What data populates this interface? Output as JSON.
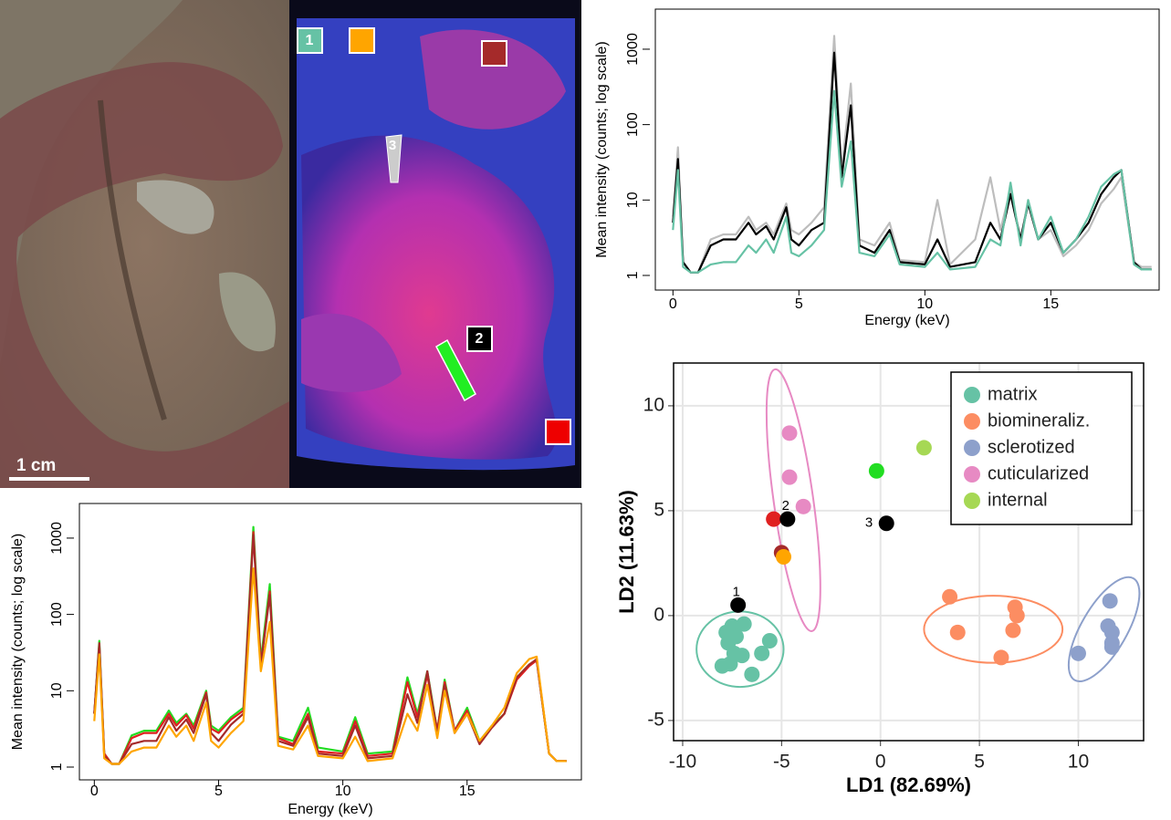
{
  "images": {
    "scale_bar": "1 cm",
    "region_labels": [
      "1",
      "2",
      "3"
    ]
  },
  "chart_data": [
    {
      "type": "line",
      "y_label": "Mean intensity (counts; log scale)",
      "x_label": "Energy (keV)",
      "log_y": true,
      "xlim": [
        -0.7,
        19.3
      ],
      "ylim": [
        0.64,
        3400
      ],
      "xticks": [
        0,
        5,
        10,
        15
      ],
      "yticks": [
        1,
        10,
        100,
        1000
      ],
      "x": [
        0,
        0.2,
        0.4,
        0.7,
        1.0,
        1.5,
        2.0,
        2.5,
        3.0,
        3.3,
        3.7,
        4.0,
        4.5,
        4.7,
        5.0,
        5.5,
        6.0,
        6.4,
        6.7,
        7.06,
        7.4,
        8.0,
        8.6,
        9.0,
        10.0,
        10.5,
        11.0,
        12.0,
        12.6,
        13.0,
        13.4,
        13.8,
        14.1,
        14.5,
        15.0,
        15.5,
        16.0,
        16.5,
        17.0,
        17.5,
        17.8,
        18.3,
        18.6,
        19.0
      ],
      "series": [
        {
          "color": "#bdbdbd",
          "values": [
            6,
            50,
            1.5,
            1.1,
            1.1,
            3,
            3.5,
            3.5,
            6,
            4,
            5,
            3.5,
            9,
            4,
            3.5,
            5,
            8,
            1500,
            25,
            350,
            3,
            2.5,
            5,
            1.6,
            1.5,
            10,
            1.4,
            3,
            20,
            4,
            14,
            3,
            10,
            3,
            4,
            1.8,
            2.5,
            4,
            9,
            14,
            20,
            1.5,
            1.3,
            1.3
          ]
        },
        {
          "color": "#000000",
          "values": [
            5,
            35,
            1.5,
            1.1,
            1.1,
            2.5,
            3,
            3,
            5,
            3.5,
            4.5,
            3,
            8,
            3,
            2.5,
            4,
            5,
            900,
            20,
            180,
            2.5,
            2,
            4,
            1.5,
            1.4,
            3,
            1.3,
            1.5,
            5,
            3,
            12,
            3,
            9,
            3,
            5,
            2,
            3,
            5,
            12,
            20,
            25,
            1.5,
            1.2,
            1.2
          ]
        },
        {
          "color": "#66c2a5",
          "values": [
            4,
            25,
            1.3,
            1.1,
            1.1,
            1.4,
            1.5,
            1.5,
            2.5,
            2,
            3,
            2,
            6,
            2,
            1.8,
            2.5,
            4,
            280,
            15,
            60,
            2,
            1.8,
            3.5,
            1.4,
            1.3,
            2,
            1.2,
            1.3,
            3,
            2.5,
            17,
            2.5,
            10,
            3,
            6,
            2,
            3,
            6,
            15,
            22,
            25,
            1.4,
            1.2,
            1.2
          ]
        }
      ]
    },
    {
      "type": "line",
      "y_label": "Mean intensity (counts; log scale)",
      "x_label": "Energy (keV)",
      "log_y": true,
      "xlim": [
        -0.6,
        19.6
      ],
      "ylim": [
        0.68,
        2840
      ],
      "xticks": [
        0,
        5,
        10,
        15
      ],
      "yticks": [
        1,
        10,
        100,
        1000
      ],
      "x": [
        0,
        0.2,
        0.4,
        0.7,
        1.0,
        1.5,
        2.0,
        2.5,
        3.0,
        3.3,
        3.7,
        4.0,
        4.5,
        4.7,
        5.0,
        5.5,
        6.0,
        6.4,
        6.7,
        7.06,
        7.4,
        8.0,
        8.6,
        9.0,
        10.0,
        10.5,
        11.0,
        12.0,
        12.6,
        13.0,
        13.4,
        13.8,
        14.1,
        14.5,
        15.0,
        15.5,
        16.0,
        16.5,
        17.0,
        17.5,
        17.8,
        18.3,
        18.6,
        19.0
      ],
      "series": [
        {
          "color": "#22dd22",
          "values": [
            5,
            45,
            1.5,
            1.1,
            1.1,
            2.6,
            3,
            3,
            5.5,
            3.8,
            5,
            3.5,
            10,
            3.5,
            3,
            4.5,
            6,
            1400,
            25,
            250,
            2.5,
            2.2,
            6,
            1.8,
            1.6,
            4.5,
            1.5,
            1.6,
            15,
            5,
            18,
            3,
            14,
            3,
            6,
            2.2,
            3.5,
            5,
            15,
            22,
            25,
            1.5,
            1.2,
            1.2
          ]
        },
        {
          "color": "#e02020",
          "values": [
            5,
            40,
            1.5,
            1.1,
            1.1,
            2.4,
            2.8,
            2.8,
            5,
            3.5,
            4.8,
            3.2,
            9.5,
            3.2,
            2.8,
            4.2,
            5.5,
            1200,
            22,
            200,
            2.4,
            2,
            5,
            1.6,
            1.5,
            4,
            1.4,
            1.5,
            13,
            4.5,
            16,
            3,
            13,
            3,
            5.5,
            2.1,
            3.3,
            5,
            14,
            21,
            25,
            1.5,
            1.2,
            1.2
          ]
        },
        {
          "color": "#a52a2a",
          "values": [
            5,
            42,
            1.4,
            1.1,
            1.1,
            2,
            2.2,
            2.2,
            4.5,
            3,
            4.2,
            2.8,
            9,
            2.8,
            2.2,
            3.6,
            5,
            1100,
            22,
            180,
            2.2,
            1.9,
            4.5,
            1.5,
            1.4,
            3.5,
            1.3,
            1.4,
            9,
            3.8,
            18,
            2.7,
            12,
            2.8,
            5,
            2,
            3.3,
            5,
            15,
            22,
            26,
            1.5,
            1.2,
            1.2
          ]
        },
        {
          "color": "#ffa500",
          "values": [
            4,
            30,
            1.3,
            1.1,
            1.1,
            1.6,
            1.8,
            1.8,
            3.5,
            2.5,
            3.5,
            2.2,
            7,
            2.2,
            1.8,
            2.8,
            4,
            400,
            18,
            80,
            1.9,
            1.7,
            3.5,
            1.4,
            1.3,
            2.5,
            1.2,
            1.3,
            5,
            3,
            12,
            2.4,
            10,
            2.8,
            5,
            2.2,
            3.5,
            6,
            17,
            26,
            28,
            1.5,
            1.2,
            1.2
          ]
        }
      ]
    },
    {
      "type": "scatter",
      "x_label": "LD1 (82.69%)",
      "y_label": "LD2 (11.63%)",
      "grid": true,
      "legend": "top-right",
      "xlim": [
        -10.46,
        13.3
      ],
      "ylim": [
        -5.96,
        12.04
      ],
      "xticks": [
        -10,
        -5,
        0,
        5,
        10
      ],
      "yticks": [
        -5,
        0,
        5,
        10
      ],
      "series": [
        {
          "name": "matrix",
          "color": "#66c2a5",
          "x": [
            -7.8,
            -7.5,
            -6.9,
            -7.7,
            -7.4,
            -6.0,
            -5.6,
            -7.0,
            -7.6,
            -8.0,
            -6.5,
            -7.3
          ],
          "y": [
            -0.8,
            -0.5,
            -0.4,
            -1.3,
            -1.8,
            -1.8,
            -1.2,
            -1.9,
            -2.3,
            -2.4,
            -2.8,
            -1.0
          ],
          "ellipse": {
            "cx": -7.1,
            "cy": -1.6,
            "rx": 2.2,
            "ry": 1.8,
            "angle": 0
          }
        },
        {
          "name": "biomineraliz.",
          "color": "#fc8d62",
          "x": [
            3.5,
            3.9,
            6.8,
            6.9,
            6.7,
            6.1
          ],
          "y": [
            0.9,
            -0.8,
            0.4,
            0.0,
            -0.7,
            -2.0
          ],
          "ellipse": {
            "cx": 5.7,
            "cy": -0.65,
            "rx": 3.5,
            "ry": 1.6,
            "angle": 0
          }
        },
        {
          "name": "sclerotized",
          "color": "#8da0cb",
          "x": [
            11.6,
            11.5,
            11.7,
            11.7,
            11.7,
            10.0
          ],
          "y": [
            0.7,
            -0.5,
            -0.8,
            -1.3,
            -1.5,
            -1.8
          ],
          "ellipse": {
            "cx": 11.3,
            "cy": -0.65,
            "rx": 1.15,
            "ry": 2.8,
            "angle": 30
          }
        },
        {
          "name": "cuticularized",
          "color": "#e78ac3",
          "x": [
            -4.6,
            -4.6,
            -3.9
          ],
          "y": [
            8.7,
            6.6,
            5.2
          ],
          "ellipse": {
            "cx": -4.4,
            "cy": 5.5,
            "rx": 1.0,
            "ry": 6.3,
            "angle": -8
          }
        },
        {
          "name": "internal",
          "color": "#a6d854",
          "x": [
            2.2
          ],
          "y": [
            8.0
          ]
        }
      ],
      "extra_points": [
        {
          "x": -0.2,
          "y": 6.9,
          "color": "#22dd22"
        },
        {
          "x": -5.4,
          "y": 4.6,
          "color": "#e02020"
        },
        {
          "x": -4.7,
          "y": 4.6,
          "color": "#000000",
          "label": "2"
        },
        {
          "x": -5.0,
          "y": 3.0,
          "color": "#a52a2a"
        },
        {
          "x": -4.9,
          "y": 2.8,
          "color": "#ffa500"
        },
        {
          "x": -7.2,
          "y": 0.5,
          "color": "#000000",
          "label": "1"
        },
        {
          "x": 0.3,
          "y": 4.4,
          "color": "#000000",
          "label": "3"
        }
      ]
    }
  ]
}
